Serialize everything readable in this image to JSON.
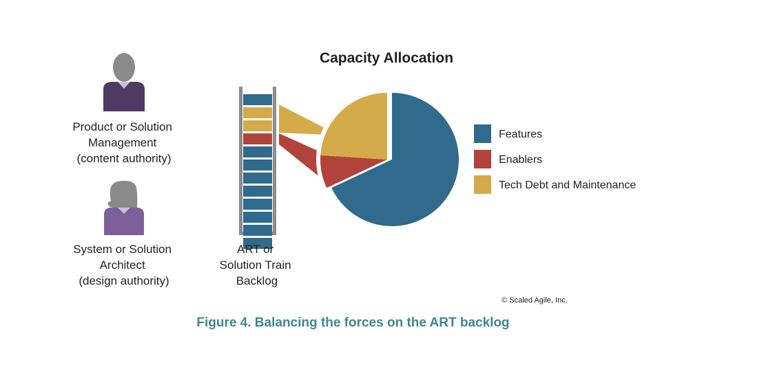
{
  "title": "Capacity Allocation",
  "people": [
    {
      "lines": [
        "Product or Solution",
        "Management",
        "(content authority)"
      ]
    },
    {
      "lines": [
        "System or Solution",
        "Architect",
        "(design authority)"
      ]
    }
  ],
  "backlog": {
    "label_lines": [
      "ART or",
      "Solution Train",
      "Backlog"
    ],
    "items": [
      "features",
      "tech-debt",
      "tech-debt",
      "enablers",
      "features",
      "features",
      "features",
      "features",
      "features",
      "features",
      "features",
      "features"
    ]
  },
  "legend": [
    {
      "key": "features",
      "label": "Features",
      "color": "#306a8c"
    },
    {
      "key": "enablers",
      "label": "Enablers",
      "color": "#b2433c"
    },
    {
      "key": "tech-debt",
      "label": "Tech Debt and Maintenance",
      "color": "#d5aa4a"
    }
  ],
  "chart_data": {
    "type": "pie",
    "title": "Capacity Allocation",
    "labels": [
      "Features",
      "Enablers",
      "Tech Debt and Maintenance"
    ],
    "values": [
      68,
      8,
      24
    ],
    "colors": [
      "#306a8c",
      "#b2433c",
      "#d5aa4a"
    ],
    "exploded": [
      "Enablers",
      "Tech Debt and Maintenance"
    ],
    "legend": "right"
  },
  "copyright": "© Scaled Agile, Inc.",
  "caption": "Figure 4. Balancing the forces on the ART backlog"
}
